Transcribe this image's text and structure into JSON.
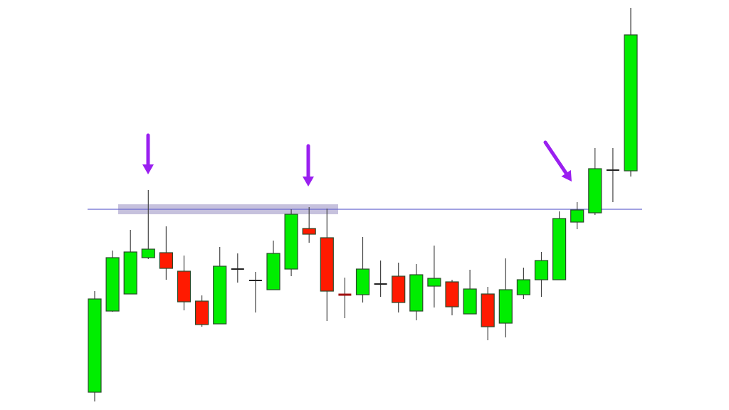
{
  "chart_data": {
    "type": "candlestick",
    "title": "",
    "xlabel": "",
    "ylabel": "",
    "axes_visible": false,
    "grid": false,
    "ylim": [
      0,
      576
    ],
    "colors": {
      "bullish": "#00ee00",
      "bearish": "#ff1a00",
      "doji": "#222222",
      "doji_red": "#a01010",
      "outline": "#2b4a2b",
      "resistance_line": "#6a6ad0",
      "resistance_band": "#b3acd2",
      "arrow": "#9a1ff0"
    },
    "candles": [
      {
        "o": 25,
        "h": 167,
        "l": 12,
        "c": 156
      },
      {
        "o": 139,
        "h": 224,
        "l": 138,
        "c": 214
      },
      {
        "o": 163,
        "h": 253,
        "l": 163,
        "c": 222
      },
      {
        "o": 214,
        "h": 309,
        "l": 212,
        "c": 226
      },
      {
        "o": 221,
        "h": 258,
        "l": 183,
        "c": 199
      },
      {
        "o": 195,
        "h": 217,
        "l": 140,
        "c": 152
      },
      {
        "o": 153,
        "h": 161,
        "l": 117,
        "c": 120
      },
      {
        "o": 121,
        "h": 229,
        "l": 121,
        "c": 202
      },
      {
        "o": 198,
        "h": 220,
        "l": 179,
        "c": 198
      },
      {
        "o": 182,
        "h": 194,
        "l": 137,
        "c": 182
      },
      {
        "o": 169,
        "h": 238,
        "l": 169,
        "c": 220
      },
      {
        "o": 198,
        "h": 282,
        "l": 188,
        "c": 275
      },
      {
        "o": 255,
        "h": 285,
        "l": 235,
        "c": 247
      },
      {
        "o": 242,
        "h": 283,
        "l": 125,
        "c": 167
      },
      {
        "o": 162,
        "h": 186,
        "l": 129,
        "c": 162,
        "doji_red": true
      },
      {
        "o": 162,
        "h": 243,
        "l": 151,
        "c": 198
      },
      {
        "o": 177,
        "h": 210,
        "l": 159,
        "c": 177
      },
      {
        "o": 188,
        "h": 207,
        "l": 137,
        "c": 151
      },
      {
        "o": 139,
        "h": 205,
        "l": 126,
        "c": 190
      },
      {
        "o": 174,
        "h": 231,
        "l": 144,
        "c": 185
      },
      {
        "o": 180,
        "h": 183,
        "l": 133,
        "c": 145
      },
      {
        "o": 135,
        "h": 197,
        "l": 135,
        "c": 170
      },
      {
        "o": 163,
        "h": 173,
        "l": 98,
        "c": 117
      },
      {
        "o": 122,
        "h": 213,
        "l": 102,
        "c": 169
      },
      {
        "o": 162,
        "h": 200,
        "l": 156,
        "c": 183
      },
      {
        "o": 183,
        "h": 222,
        "l": 159,
        "c": 210
      },
      {
        "o": 183,
        "h": 279,
        "l": 183,
        "c": 269
      },
      {
        "o": 264,
        "h": 292,
        "l": 254,
        "c": 281
      },
      {
        "o": 277,
        "h": 368,
        "l": 274,
        "c": 339
      },
      {
        "o": 337,
        "h": 368,
        "l": 292,
        "c": 337
      },
      {
        "o": 336,
        "h": 565,
        "l": 328,
        "c": 527
      }
    ],
    "resistance_level": 282,
    "annotations": [
      {
        "type": "arrow",
        "target_candle": 4
      },
      {
        "type": "arrow",
        "target_candle": 13
      },
      {
        "type": "arrow",
        "target_candle": 28,
        "direction": "diagonal"
      }
    ]
  }
}
